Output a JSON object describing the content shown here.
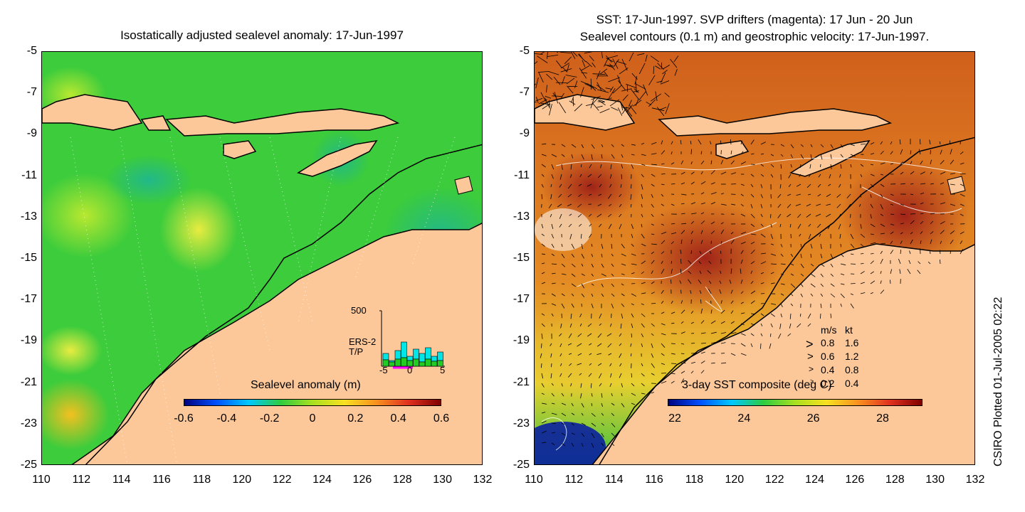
{
  "left_panel": {
    "title": "Isostatically adjusted sealevel anomaly: 17-Jun-1997",
    "colorbar": {
      "title": "Sealevel anomaly (m)",
      "labels": [
        "-0.6",
        "-0.4",
        "-0.2",
        "0",
        "0.2",
        "0.4",
        "0.6"
      ]
    },
    "histogram": {
      "ymax_label": "500",
      "x_labels": [
        "-5",
        "0",
        "5"
      ],
      "series": [
        {
          "name": "ERS-2",
          "color": "#00e5e5"
        },
        {
          "name": "T/P",
          "color": "#22cc22"
        }
      ]
    }
  },
  "right_panel": {
    "title_line1": "SST: 17-Jun-1997. SVP drifters (magenta): 17 Jun - 20 Jun",
    "title_line2": "Sealevel contours (0.1 m) and geostrophic velocity: 17-Jun-1997.",
    "colorbar": {
      "title": "3-day SST composite (deg C)",
      "labels": [
        "22",
        "24",
        "26",
        "28"
      ]
    },
    "velocity_legend": {
      "header_ms": "m/s",
      "header_kt": "kt",
      "rows": [
        {
          "ms": "0.8",
          "kt": "1.6"
        },
        {
          "ms": "0.6",
          "kt": "1.2"
        },
        {
          "ms": "0.4",
          "kt": "0.8"
        },
        {
          "ms": "0.2",
          "kt": "0.4"
        }
      ]
    }
  },
  "axes": {
    "lat_ticks": [
      "-5",
      "-7",
      "-9",
      "-11",
      "-13",
      "-15",
      "-17",
      "-19",
      "-21",
      "-23",
      "-25"
    ],
    "lon_ticks": [
      "110",
      "112",
      "114",
      "116",
      "118",
      "120",
      "122",
      "124",
      "126",
      "128",
      "130",
      "132"
    ],
    "lon_range": [
      110,
      132
    ],
    "lat_range": [
      -25,
      -5
    ]
  },
  "credit": "CSIRO Plotted 01-Jul-2005 02:22",
  "colors": {
    "land": "#fcc89a",
    "sla_ocean": "#3ccc3c",
    "sst_ocean": "#d86a22"
  }
}
